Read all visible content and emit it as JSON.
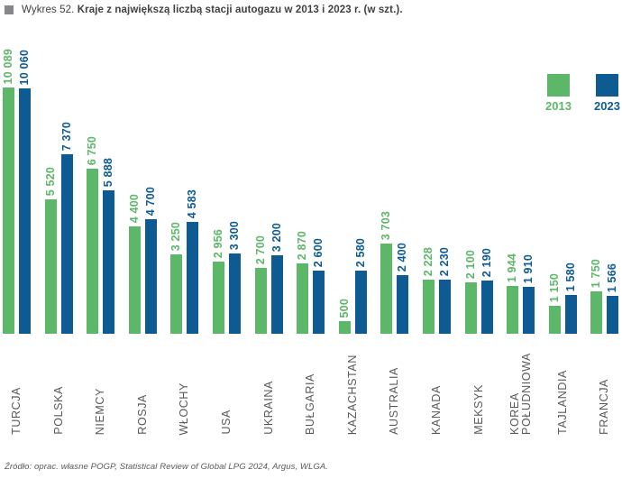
{
  "title": {
    "prefix": "Wykres 52. ",
    "main": "Kraje z największą liczbą stacji autogazu w 2013 i 2023 r. (w szt.)."
  },
  "legend": {
    "items": [
      {
        "label": "2013",
        "color": "#5DB768"
      },
      {
        "label": "2023",
        "color": "#0E5B94"
      }
    ]
  },
  "source": "Źródło: oprac. własne POGP, Statistical Review of Global LPG 2024, Argus, WLGA.",
  "colors": {
    "bar_2013": "#5DB768",
    "bar_2023": "#0E5B94",
    "category_text": "#58595B",
    "title_text": "#414042",
    "bullet": "#85878A",
    "source_text": "#58595B"
  },
  "chart_data": {
    "type": "bar",
    "title": "Kraje z największą liczbą stacji autogazu w 2013 i 2023 r. (w szt.)",
    "categories": [
      "TURCJA",
      "POLSKA",
      "NIEMCY",
      "ROSJA",
      "WŁOCHY",
      "USA",
      "UKRAINA",
      "BUŁGARIA",
      "KAZACHSTAN",
      "AUSTRALIA",
      "KANADA",
      "MEKSYK",
      "KOREA\nPOŁUDNIOWA",
      "TAJLANDIA",
      "FRANCJA"
    ],
    "series": [
      {
        "name": "2013",
        "color": "#5DB768",
        "values": [
          10089,
          5520,
          6750,
          4400,
          3250,
          2956,
          2700,
          2870,
          500,
          3703,
          2228,
          2100,
          1944,
          1150,
          1750
        ]
      },
      {
        "name": "2023",
        "color": "#0E5B94",
        "values": [
          10060,
          7370,
          5888,
          4700,
          4583,
          3300,
          3200,
          2600,
          2580,
          2400,
          2230,
          2190,
          1910,
          1580,
          1566
        ]
      }
    ],
    "ymax": 10089,
    "value_label_format": "thousands-space",
    "value_labels_rotated": true,
    "category_labels_rotated": true,
    "bar_orientation": "vertical",
    "grid": false,
    "legend_position": "top-right",
    "xlabel": "",
    "ylabel": ""
  }
}
